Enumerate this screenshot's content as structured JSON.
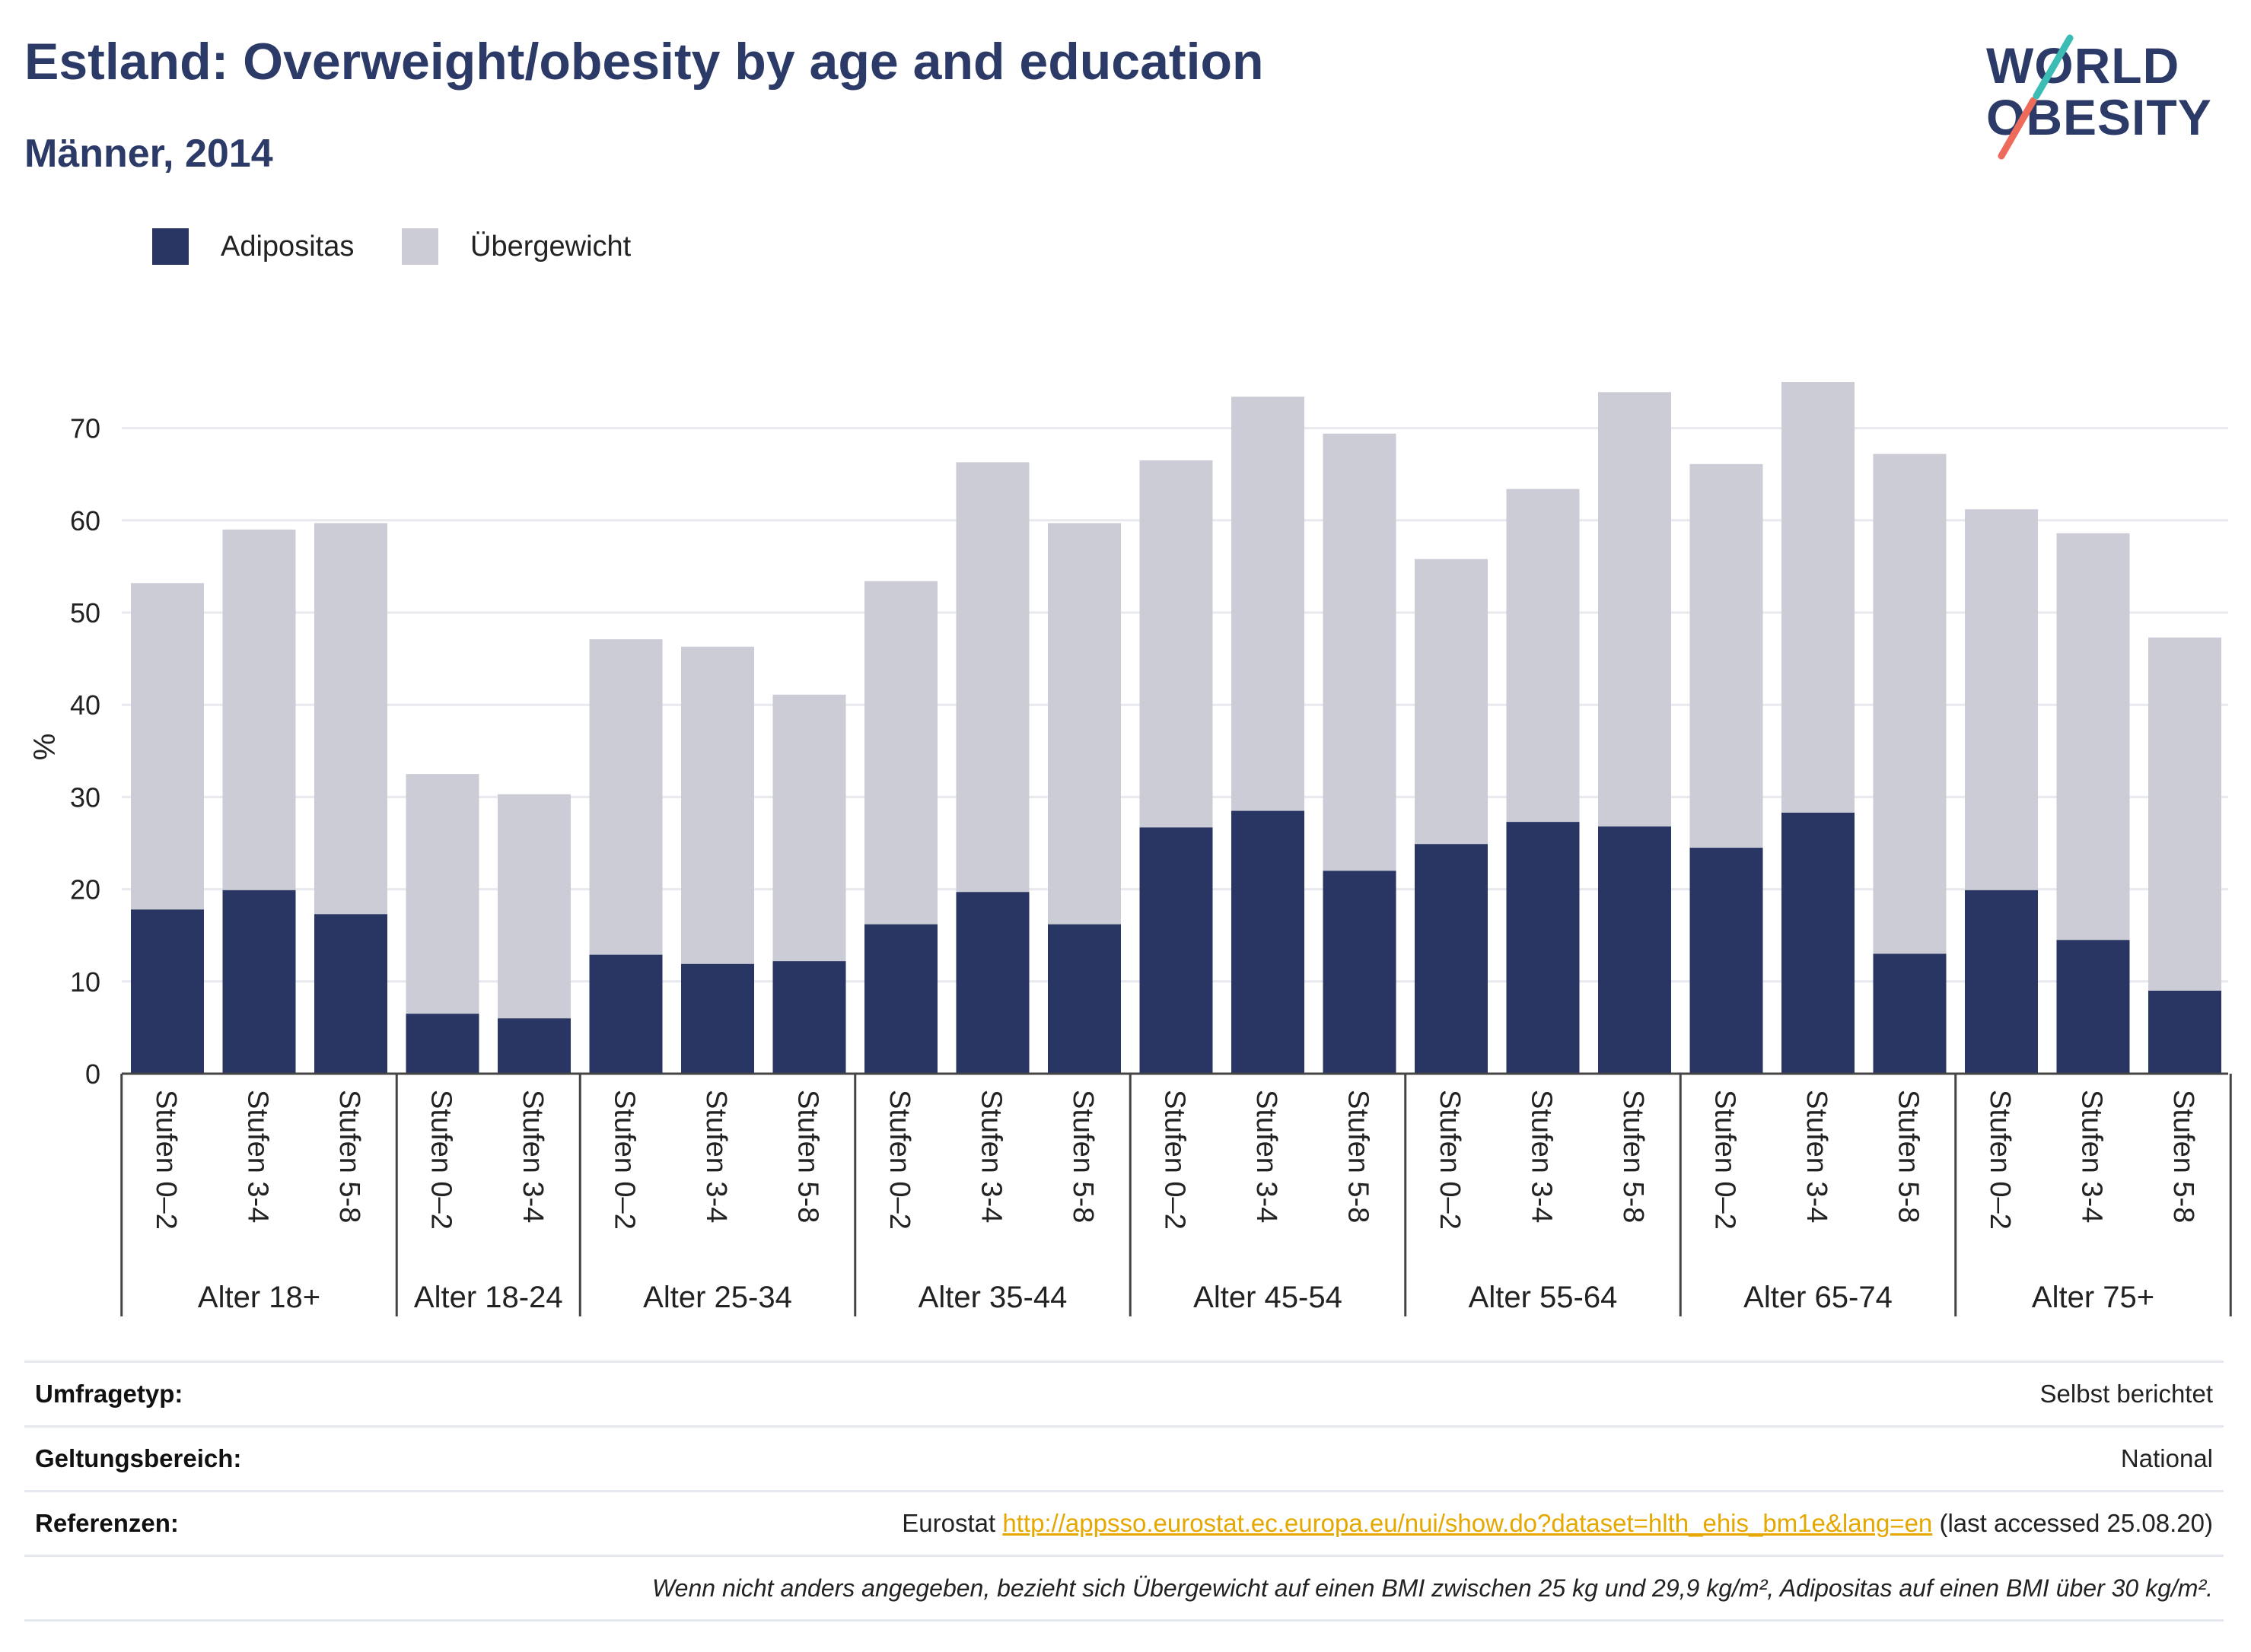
{
  "header": {
    "title": "Estland: Overweight/obesity by age and education",
    "subtitle": "Männer, 2014"
  },
  "logo": {
    "line1": "WORLD",
    "line2": "OBESITY"
  },
  "colors": {
    "adipositas": "#293562",
    "uebergewicht": "#cbccd6",
    "grid": "#e8e9ee",
    "link": "#e6a800"
  },
  "chart_data": {
    "type": "bar",
    "stacked": true,
    "ylabel": "%",
    "ylim": [
      0,
      75
    ],
    "yticks": [
      0,
      10,
      20,
      30,
      40,
      50,
      60,
      70
    ],
    "grid": true,
    "legend_position": "top-left",
    "series": [
      {
        "name": "Adipositas",
        "color": "#293562"
      },
      {
        "name": "Übergewicht",
        "color": "#cbccd6"
      }
    ],
    "groups": [
      {
        "label": "Alter 18+",
        "bars": [
          {
            "label": "Stufen 0–2",
            "adipositas": 17.8,
            "total": 53.2
          },
          {
            "label": "Stufen 3-4",
            "adipositas": 19.9,
            "total": 59.0
          },
          {
            "label": "Stufen 5-8",
            "adipositas": 17.3,
            "total": 59.7
          }
        ]
      },
      {
        "label": "Alter 18-24",
        "bars": [
          {
            "label": "Stufen 0–2",
            "adipositas": 6.5,
            "total": 32.5
          },
          {
            "label": "Stufen 3-4",
            "adipositas": 6.0,
            "total": 30.3
          }
        ]
      },
      {
        "label": "Alter 25-34",
        "bars": [
          {
            "label": "Stufen 0–2",
            "adipositas": 12.9,
            "total": 47.1
          },
          {
            "label": "Stufen 3-4",
            "adipositas": 11.9,
            "total": 46.3
          },
          {
            "label": "Stufen 5-8",
            "adipositas": 12.2,
            "total": 41.1
          }
        ]
      },
      {
        "label": "Alter 35-44",
        "bars": [
          {
            "label": "Stufen 0–2",
            "adipositas": 16.2,
            "total": 53.4
          },
          {
            "label": "Stufen 3-4",
            "adipositas": 19.7,
            "total": 66.3
          },
          {
            "label": "Stufen 5-8",
            "adipositas": 16.2,
            "total": 59.7
          }
        ]
      },
      {
        "label": "Alter 45-54",
        "bars": [
          {
            "label": "Stufen 0–2",
            "adipositas": 26.7,
            "total": 66.5
          },
          {
            "label": "Stufen 3-4",
            "adipositas": 28.5,
            "total": 73.4
          },
          {
            "label": "Stufen 5-8",
            "adipositas": 22.0,
            "total": 69.4
          }
        ]
      },
      {
        "label": "Alter 55-64",
        "bars": [
          {
            "label": "Stufen 0–2",
            "adipositas": 24.9,
            "total": 55.8
          },
          {
            "label": "Stufen 3-4",
            "adipositas": 27.3,
            "total": 63.4
          },
          {
            "label": "Stufen 5-8",
            "adipositas": 26.8,
            "total": 73.9
          }
        ]
      },
      {
        "label": "Alter 65-74",
        "bars": [
          {
            "label": "Stufen 0–2",
            "adipositas": 24.5,
            "total": 66.1
          },
          {
            "label": "Stufen 3-4",
            "adipositas": 28.3,
            "total": 75.0
          },
          {
            "label": "Stufen 5-8",
            "adipositas": 13.0,
            "total": 67.2
          }
        ]
      },
      {
        "label": "Alter 75+",
        "bars": [
          {
            "label": "Stufen 0–2",
            "adipositas": 19.9,
            "total": 61.2
          },
          {
            "label": "Stufen 3-4",
            "adipositas": 14.5,
            "total": 58.6
          },
          {
            "label": "Stufen 5-8",
            "adipositas": 9.0,
            "total": 47.3
          }
        ]
      }
    ]
  },
  "info": {
    "survey_type": {
      "label": "Umfragetyp:",
      "value": "Selbst berichtet"
    },
    "scope": {
      "label": "Geltungsbereich:",
      "value": "National"
    },
    "references": {
      "label": "Referenzen:",
      "prefix": "Eurostat",
      "link": "http://appsso.eurostat.ec.europa.eu/nui/show.do?dataset=hlth_ehis_bm1e&lang=en",
      "suffix": "(last accessed 25.08.20)"
    },
    "note": "Wenn nicht anders angegeben, bezieht sich Übergewicht auf einen BMI zwischen 25 kg und 29,9 kg/m², Adipositas auf einen BMI über 30 kg/m²."
  }
}
